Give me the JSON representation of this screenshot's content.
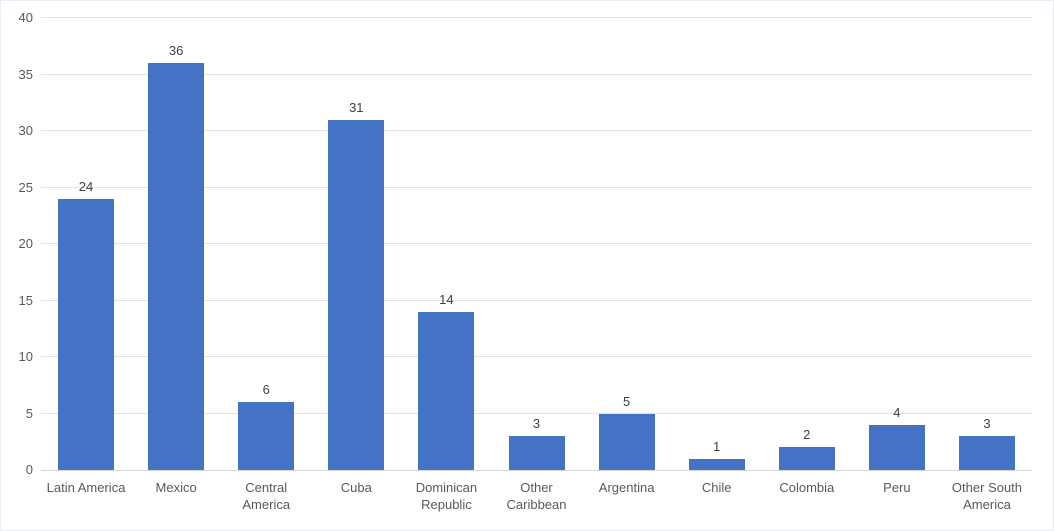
{
  "chart_data": {
    "type": "bar",
    "title": "",
    "xlabel": "",
    "ylabel": "",
    "categories": [
      "Latin America",
      "Mexico",
      "Central America",
      "Cuba",
      "Dominican Republic",
      "Other Caribbean",
      "Argentina",
      "Chile",
      "Colombia",
      "Peru",
      "Other South America"
    ],
    "values": [
      24,
      36,
      6,
      31,
      14,
      3,
      5,
      1,
      2,
      4,
      3
    ],
    "data_labels": [
      24,
      36,
      6,
      31,
      14,
      3,
      5,
      1,
      2,
      4,
      3
    ],
    "ylim": [
      0,
      40
    ],
    "yticks": [
      0,
      5,
      10,
      15,
      20,
      25,
      30,
      35,
      40
    ],
    "grid": true,
    "legend_position": "none",
    "colors": {
      "bar_fill": "#4472C4",
      "gridline": "#E3E3E3",
      "axis_line": "#D6D6D6",
      "tick_label": "#595959",
      "category_label": "#595959",
      "data_label": "#404040",
      "background": "#FFFFFF",
      "frame_border": "#E9ECF4"
    }
  }
}
